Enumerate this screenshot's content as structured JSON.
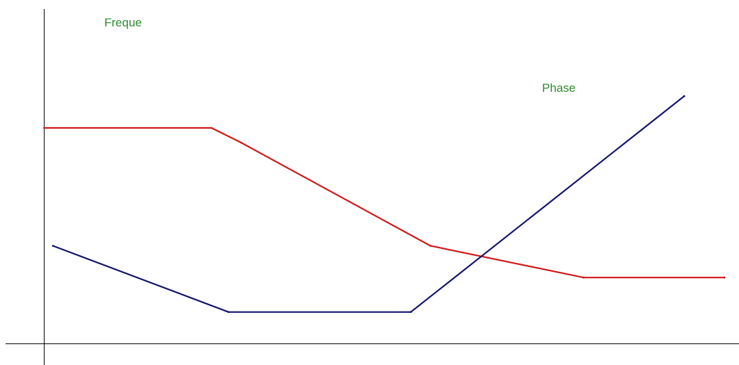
{
  "chart_data": {
    "type": "line",
    "title": "",
    "xlabel": "",
    "ylabel": "",
    "xlim": [
      0,
      100
    ],
    "ylim": [
      0,
      100
    ],
    "grid": false,
    "legend": "none",
    "annotations": [
      {
        "text": "Freque",
        "color": "#2e8b2e"
      },
      {
        "text": "Phase",
        "color": "#2e8b2e"
      }
    ],
    "series": [
      {
        "color": "#d01818",
        "points": [
          {
            "x": 0.0,
            "y": 73.6
          },
          {
            "x": 24.6,
            "y": 73.6
          },
          {
            "x": 29.0,
            "y": 68.1
          },
          {
            "x": 56.8,
            "y": 30.1
          },
          {
            "x": 79.3,
            "y": 18.4
          },
          {
            "x": 100.0,
            "y": 18.4
          }
        ]
      },
      {
        "color": "#14146e",
        "points": [
          {
            "x": 1.3,
            "y": 30.1
          },
          {
            "x": 27.1,
            "y": 5.7
          },
          {
            "x": 53.9,
            "y": 5.7
          },
          {
            "x": 94.1,
            "y": 85.3
          }
        ]
      }
    ]
  }
}
